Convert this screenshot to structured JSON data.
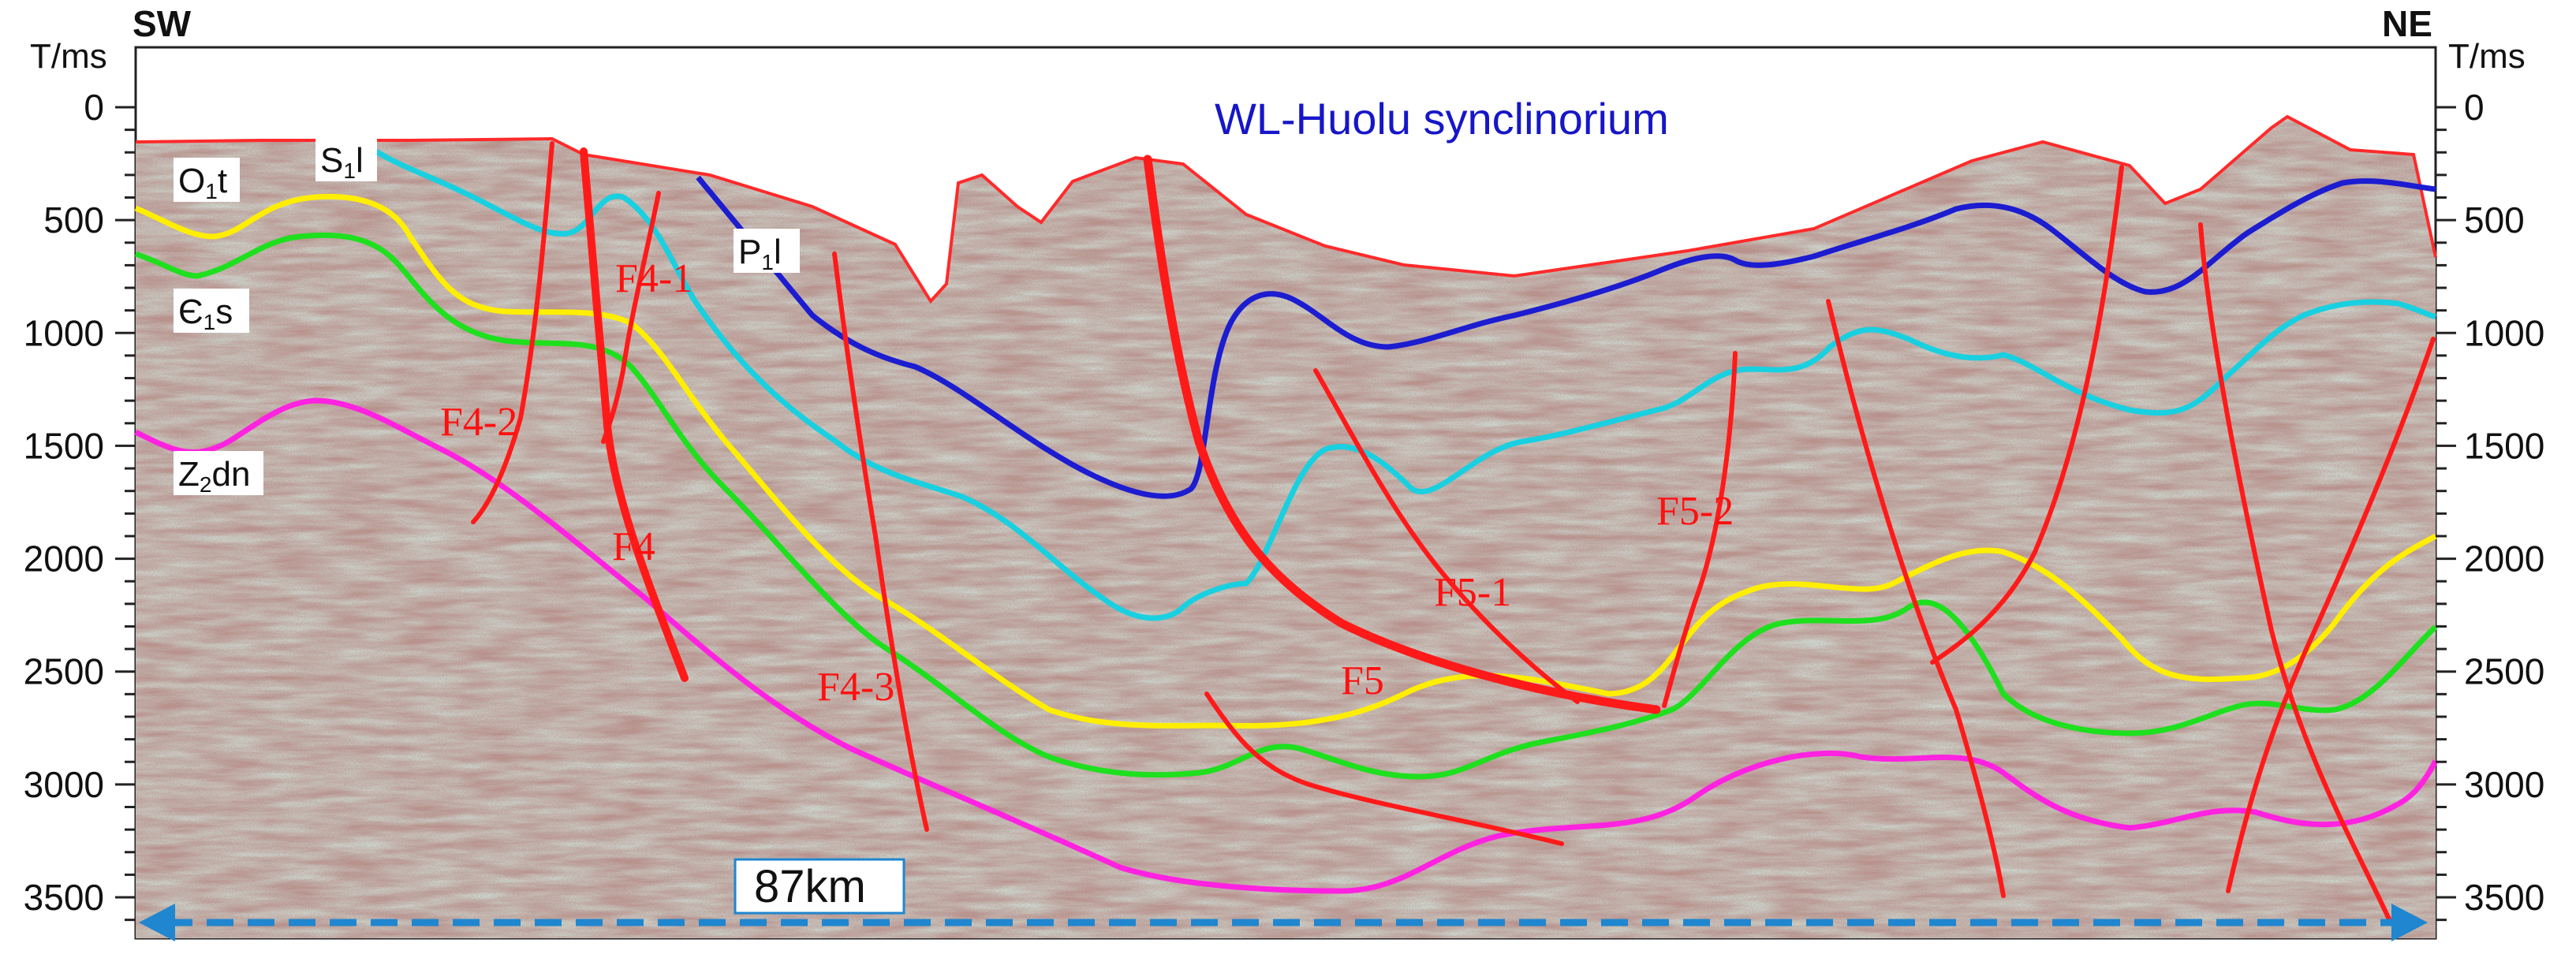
{
  "directions": {
    "left": "SW",
    "right": "NE"
  },
  "axis": {
    "unit": "T/ms",
    "ticks": [
      {
        "value": 0,
        "label": "0"
      },
      {
        "value": 500,
        "label": "500"
      },
      {
        "value": 1000,
        "label": "1000"
      },
      {
        "value": 1500,
        "label": "1500"
      },
      {
        "value": 2000,
        "label": "2000"
      },
      {
        "value": 2500,
        "label": "2500"
      },
      {
        "value": 3000,
        "label": "3000"
      },
      {
        "value": 3500,
        "label": "3500"
      }
    ]
  },
  "title": "WL-Huolu synclinorium",
  "scale_bar": {
    "label": "87km"
  },
  "layers": [
    {
      "base": "O",
      "sub": "1",
      "rest": "t"
    },
    {
      "base": "S",
      "sub": "1",
      "rest": "l"
    },
    {
      "base": "P",
      "sub": "1",
      "rest": "l"
    },
    {
      "base": "Є",
      "sub": "1",
      "rest": "s"
    },
    {
      "base": "Z",
      "sub": "2",
      "rest": "dn"
    }
  ],
  "faults": [
    "F4-1",
    "F4-2",
    "F4",
    "F4-3",
    "F5",
    "F5-1",
    "F5-2"
  ],
  "colors": {
    "surface": "#ff2a2a",
    "P1l_horizon": "#1c1cd0",
    "S1l_horizon": "#19d0e0",
    "O1t_horizon": "#ffee00",
    "E1s_horizon": "#1ee01e",
    "Z2dn_horizon": "#ff22e0",
    "faults": "#ff1a1a",
    "scale_arrow": "#1f86cf"
  }
}
